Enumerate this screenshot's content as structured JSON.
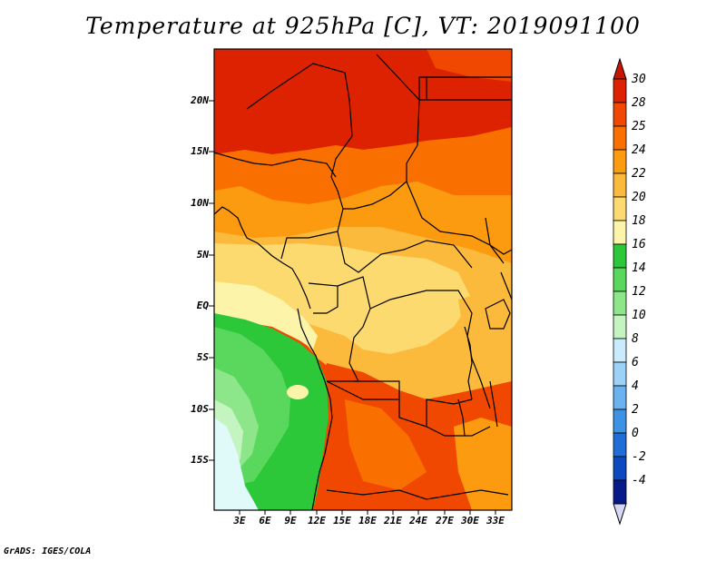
{
  "title": "Temperature at 925hPa [C], VT: 2019091100",
  "lat_labels": [
    "20N",
    "15N",
    "10N",
    "5N",
    "EQ",
    "5S",
    "10S",
    "15S"
  ],
  "lon_labels": [
    "3E",
    "6E",
    "9E",
    "12E",
    "15E",
    "18E",
    "21E",
    "24E",
    "27E",
    "30E",
    "33E"
  ],
  "colorbar_labels": [
    "30",
    "28",
    "25",
    "24",
    "22",
    "20",
    "18",
    "16",
    "14",
    "12",
    "10",
    "8",
    "6",
    "4",
    "2",
    "0",
    "-2",
    "-4"
  ],
  "colorbar_colors": [
    "#dc2200",
    "#f04800",
    "#fa7000",
    "#fc9a10",
    "#fcba3c",
    "#fcda70",
    "#fcf4a8",
    "#2cc83a",
    "#5ad85e",
    "#8ee68a",
    "#c4f4c0",
    "#c8ecfc",
    "#9cd2f8",
    "#6ab2f0",
    "#3e92e6",
    "#1f6ed8",
    "#0c48c0",
    "#061a8a"
  ],
  "credit": "GrADS: IGES/COLA"
}
